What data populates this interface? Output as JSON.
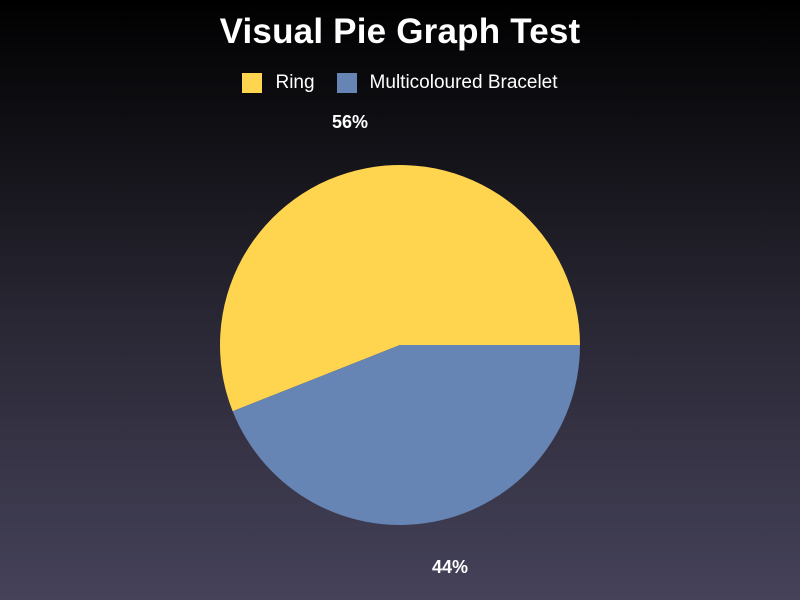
{
  "chart_data": {
    "type": "pie",
    "title": "Visual Pie Graph Test",
    "categories": [
      "Ring",
      "Multicoloured Bracelet"
    ],
    "values": [
      56,
      44
    ],
    "labels": [
      "56%",
      "44%"
    ],
    "colors": [
      "#ffd54f",
      "#6685b5"
    ],
    "legend_position": "top"
  }
}
